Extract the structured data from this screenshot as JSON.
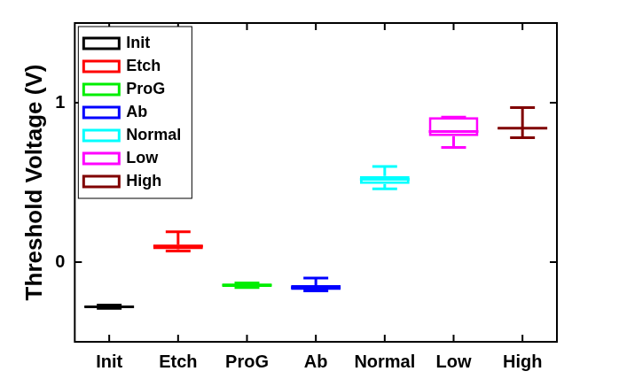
{
  "chart_data": {
    "type": "box",
    "y_label": "Threshold Voltage (V)",
    "categories": [
      "Init",
      "Etch",
      "ProG",
      "Ab",
      "Normal",
      "Low",
      "High"
    ],
    "series": [
      {
        "name": "Init",
        "color": "#000000",
        "min": -0.29,
        "q1": -0.285,
        "median": -0.28,
        "q3": -0.275,
        "max": -0.27
      },
      {
        "name": "Etch",
        "color": "#ff0000",
        "min": 0.07,
        "q1": 0.08,
        "median": 0.1,
        "q3": 0.11,
        "max": 0.19
      },
      {
        "name": "ProG",
        "color": "#00ee00",
        "min": -0.16,
        "q1": -0.155,
        "median": -0.145,
        "q3": -0.135,
        "max": -0.13
      },
      {
        "name": "Ab",
        "color": "#0000ff",
        "min": -0.18,
        "q1": -0.175,
        "median": -0.16,
        "q3": -0.145,
        "max": -0.1
      },
      {
        "name": "Normal",
        "color": "#00ffff",
        "min": 0.46,
        "q1": 0.49,
        "median": 0.52,
        "q3": 0.54,
        "max": 0.6
      },
      {
        "name": "Low",
        "color": "#ff00ff",
        "min": 0.72,
        "q1": 0.79,
        "median": 0.82,
        "q3": 0.91,
        "max": 0.91
      },
      {
        "name": "High",
        "color": "#800000",
        "min": 0.78,
        "q1": 0.835,
        "median": 0.84,
        "q3": 0.845,
        "max": 0.97
      }
    ],
    "ylim": [
      -0.5,
      1.5
    ],
    "yticks": [
      0,
      1
    ],
    "legend": "upper left",
    "grid": false
  }
}
